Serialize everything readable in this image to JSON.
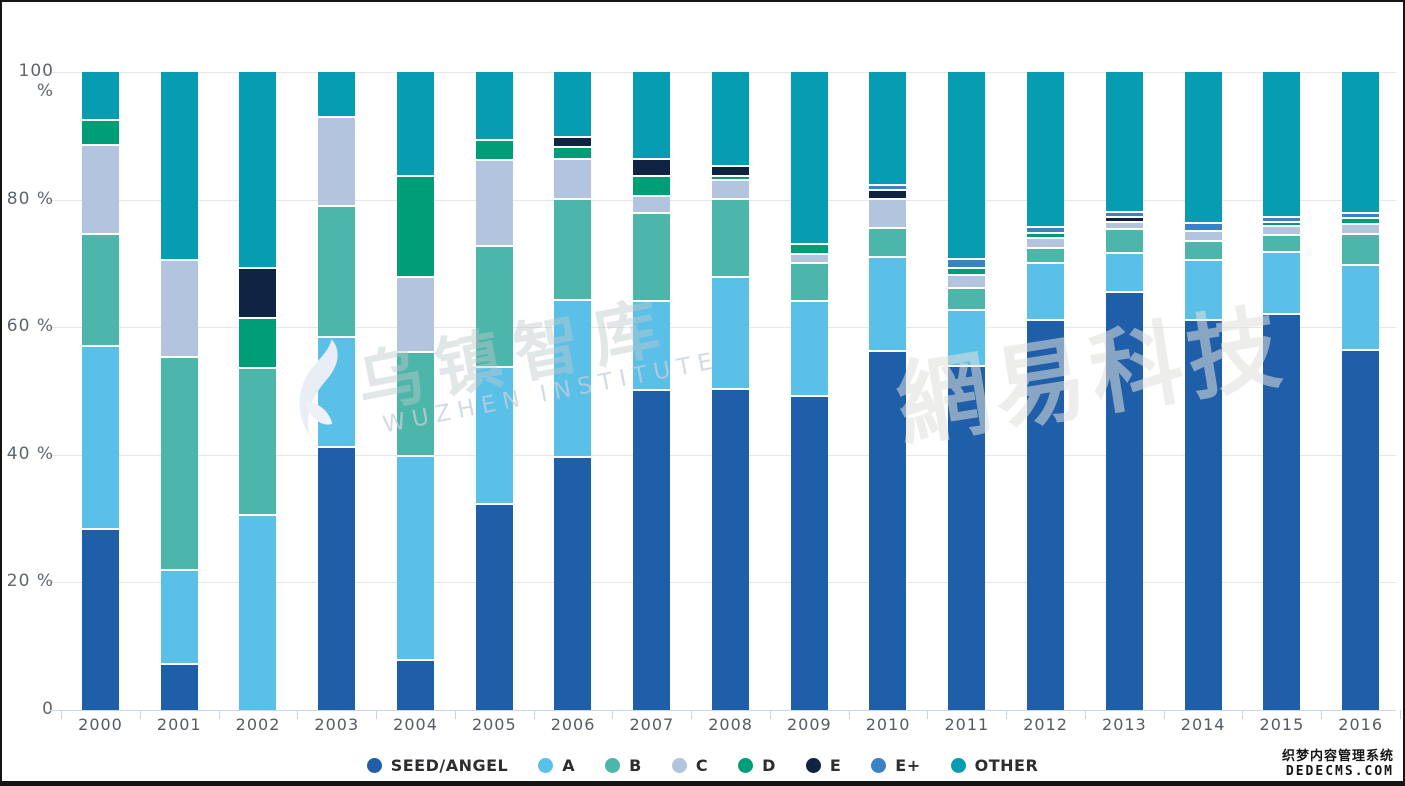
{
  "watermarks": {
    "wuzhen_cn": "乌镇智库",
    "wuzhen_en": "WUZHEN  INSTITUTE",
    "netease": "網易科技"
  },
  "badge": {
    "line1": "织梦内容管理系统",
    "line2": "DEDECMS.COM"
  },
  "chart_data": {
    "type": "bar",
    "stacked": true,
    "title": "",
    "xlabel": "",
    "ylabel": "",
    "unit": "%",
    "ylim": [
      0,
      100
    ],
    "grid": true,
    "legend_position": "bottom",
    "yticks": [
      {
        "value": 100,
        "label": "100 %"
      },
      {
        "value": 80,
        "label": "80 %"
      },
      {
        "value": 60,
        "label": "60 %"
      },
      {
        "value": 40,
        "label": "40 %"
      },
      {
        "value": 20,
        "label": "20 %"
      },
      {
        "value": 0,
        "label": "0"
      }
    ],
    "categories": [
      "2000",
      "2001",
      "2002",
      "2003",
      "2004",
      "2005",
      "2006",
      "2007",
      "2008",
      "2009",
      "2010",
      "2011",
      "2012",
      "2013",
      "2014",
      "2015",
      "2016"
    ],
    "series": [
      {
        "name": "SEED/ANGEL",
        "color": "#1F5FA9",
        "values": [
          28.6,
          7.4,
          0,
          41.4,
          8.0,
          32.5,
          39.8,
          50.3,
          50.4,
          49.3,
          56.5,
          54.0,
          61.3,
          65.7,
          61.3,
          62.3,
          56.6
        ]
      },
      {
        "name": "A",
        "color": "#5BC0E8",
        "values": [
          28.6,
          14.7,
          30.7,
          17.3,
          32.0,
          21.4,
          24.7,
          14.0,
          17.6,
          14.9,
          14.7,
          8.8,
          8.9,
          6.1,
          9.4,
          9.6,
          13.3
        ]
      },
      {
        "name": "B",
        "color": "#4DB6AA",
        "values": [
          17.6,
          33.4,
          23.1,
          20.5,
          16.3,
          19.0,
          15.7,
          13.7,
          12.3,
          6.1,
          4.5,
          3.5,
          2.4,
          3.7,
          2.9,
          2.7,
          4.9
        ]
      },
      {
        "name": "C",
        "color": "#B3C4DE",
        "values": [
          13.9,
          15.2,
          0,
          13.9,
          11.8,
          13.5,
          6.3,
          2.8,
          2.9,
          1.4,
          4.5,
          2.0,
          1.5,
          1.2,
          1.6,
          1.4,
          1.6
        ]
      },
      {
        "name": "D",
        "color": "#009E77",
        "values": [
          3.9,
          0,
          7.8,
          0,
          15.7,
          3.1,
          1.9,
          3.1,
          0.7,
          1.5,
          0,
          1.2,
          0.8,
          0,
          0,
          0.7,
          0.9
        ]
      },
      {
        "name": "E",
        "color": "#0F2342",
        "values": [
          0,
          0,
          7.9,
          0,
          0,
          0,
          1.5,
          2.6,
          1.6,
          0,
          1.4,
          0,
          0,
          0.8,
          0,
          0,
          0
        ]
      },
      {
        "name": "E+",
        "color": "#3B82C4",
        "values": [
          0,
          0,
          0,
          0,
          0,
          0,
          0,
          0,
          0,
          0,
          0.9,
          1.3,
          0.9,
          0.7,
          1.3,
          0.7,
          0.7
        ]
      },
      {
        "name": "OTHER",
        "color": "#069DB3",
        "values": [
          7.4,
          29.3,
          30.5,
          6.9,
          16.2,
          10.5,
          10.1,
          13.5,
          14.5,
          26.8,
          17.5,
          29.2,
          24.2,
          21.8,
          23.5,
          22.6,
          22.0
        ]
      }
    ]
  }
}
